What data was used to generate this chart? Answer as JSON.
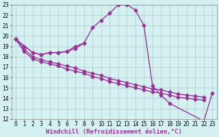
{
  "xlabel": "Windchill (Refroidissement éolien,°C)",
  "line_color": "#993399",
  "markersize": 2.5,
  "linewidth": 1.0,
  "bg_color": "#d4f0f0",
  "grid_color": "#aacccc",
  "ylim": [
    12,
    23
  ],
  "xlim": [
    -0.5,
    23.5
  ],
  "yticks": [
    12,
    13,
    14,
    15,
    16,
    17,
    18,
    19,
    20,
    21,
    22,
    23
  ],
  "xticks": [
    0,
    1,
    2,
    3,
    4,
    5,
    6,
    7,
    8,
    9,
    10,
    11,
    12,
    13,
    14,
    15,
    16,
    17,
    18,
    19,
    20,
    21,
    22,
    23
  ],
  "tick_fontsize": 5.5,
  "xlabel_fontsize": 6.5,
  "lineA_x": [
    0,
    1,
    2,
    3,
    4,
    5,
    6,
    7,
    8,
    9,
    10,
    11,
    12,
    13,
    14,
    15,
    16,
    17,
    18,
    22,
    23
  ],
  "lineA_y": [
    19.7,
    19.0,
    18.4,
    18.2,
    18.4,
    18.4,
    18.5,
    18.8,
    19.3,
    20.8,
    21.5,
    22.2,
    23.0,
    23.0,
    22.5,
    21.0,
    15.2,
    14.3,
    13.5,
    11.8,
    14.5
  ],
  "lineB_x": [
    0,
    2,
    3,
    4,
    5,
    6,
    7,
    8
  ],
  "lineB_y": [
    19.7,
    18.4,
    18.2,
    18.4,
    18.4,
    18.5,
    19.0,
    19.3
  ],
  "lineC_x": [
    0,
    1,
    2,
    3,
    4,
    5,
    6,
    7,
    8,
    9,
    10,
    11,
    12,
    13,
    14,
    15,
    16,
    17,
    18,
    19,
    20,
    21,
    22
  ],
  "lineC_y": [
    19.7,
    18.7,
    18.0,
    17.7,
    17.5,
    17.3,
    17.1,
    16.9,
    16.6,
    16.4,
    16.2,
    15.9,
    15.7,
    15.5,
    15.3,
    15.1,
    14.9,
    14.8,
    14.6,
    14.4,
    14.3,
    14.2,
    14.1
  ],
  "lineD_x": [
    0,
    1,
    2,
    3,
    4,
    5,
    6,
    7,
    8,
    9,
    10,
    11,
    12,
    13,
    14,
    15,
    16,
    17,
    18,
    19,
    20,
    21,
    22
  ],
  "lineD_y": [
    19.7,
    18.5,
    17.8,
    17.5,
    17.3,
    17.1,
    16.8,
    16.6,
    16.4,
    16.1,
    15.9,
    15.6,
    15.4,
    15.2,
    15.0,
    14.8,
    14.6,
    14.5,
    14.3,
    14.1,
    14.0,
    13.9,
    13.8
  ]
}
